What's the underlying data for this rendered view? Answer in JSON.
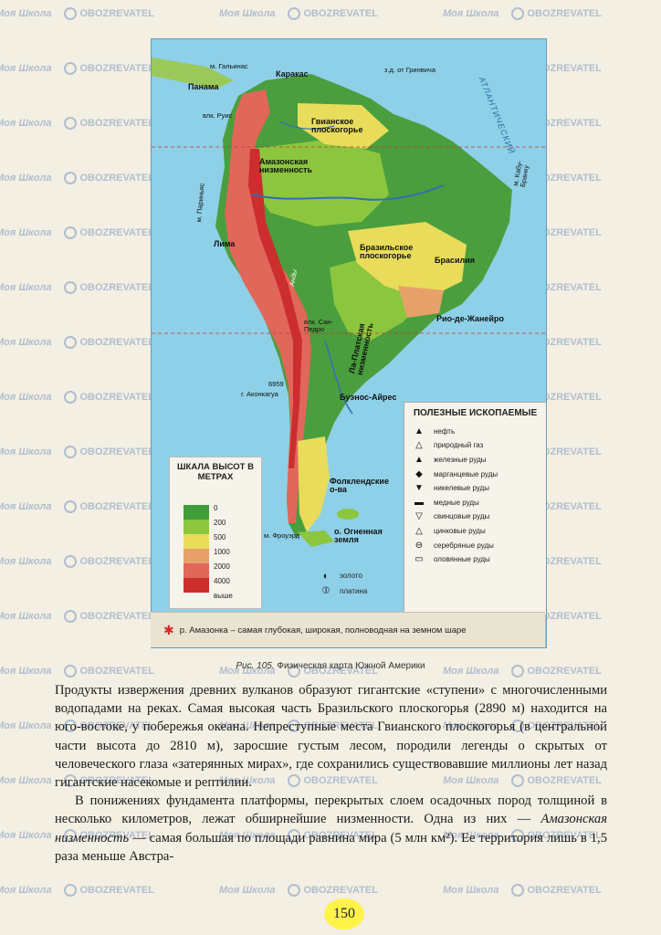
{
  "watermark": {
    "site": "Моя Школа",
    "brand": "OBOZREVATEL"
  },
  "map": {
    "labels": {
      "galinas": "м. Гальинас",
      "caracas": "Каракас",
      "panama": "Панама",
      "ruiz": "влк. Руис",
      "guiana_plateau": "Гвианское плоскогорье",
      "amazon_lowland": "Амазонская низменность",
      "parinas": "м. Париньяс",
      "lima": "Лима",
      "brazil_plateau": "Бразильское плоскогорье",
      "brasilia": "Брасилия",
      "rio": "Рио-де-Жанейро",
      "laplata": "Ла-Платская низменность",
      "san_pedro": "влк. Сан-Педро",
      "aconcagua_h": "6959",
      "aconcagua": "г. Аконкагуа",
      "buenos_aires": "Буэнос-Айрес",
      "falkland": "Фолклендские о-ва",
      "froward": "м. Фроуэрд",
      "tierra": "о. Огненная земля",
      "kabu_branku": "м. Кабу-Бранку",
      "andes": "Анды",
      "atlantic": "АТЛАНТИЧЕСКИЙ",
      "greenwich": "з.д. от Гринвича"
    },
    "minerals_legend": {
      "title": "ПОЛЕЗНЫЕ ИСКОПАЕМЫЕ",
      "items": [
        {
          "sym": "▲",
          "label": "нефть",
          "icon": "oil-icon"
        },
        {
          "sym": "△",
          "label": "природный газ",
          "icon": "gas-icon"
        },
        {
          "sym": "▲",
          "label": "железные руды",
          "icon": "iron-icon"
        },
        {
          "sym": "◆",
          "label": "марганцевые руды",
          "icon": "manganese-icon"
        },
        {
          "sym": "▼",
          "label": "никелевые руды",
          "icon": "nickel-icon"
        },
        {
          "sym": "▬",
          "label": "медные руды",
          "icon": "copper-icon"
        },
        {
          "sym": "▽",
          "label": "свинцовые руды",
          "icon": "lead-icon"
        },
        {
          "sym": "△",
          "label": "цинковые руды",
          "icon": "zinc-icon"
        },
        {
          "sym": "⊖",
          "label": "серебряные руды",
          "icon": "silver-icon"
        },
        {
          "sym": "▭",
          "label": "оловянные руды",
          "icon": "tin-icon"
        }
      ]
    },
    "scale_legend": {
      "title": "ШКАЛА ВЫСОТ В МЕТРАХ",
      "levels": [
        "0",
        "200",
        "500",
        "1000",
        "2000",
        "4000",
        "выше"
      ],
      "colors": [
        "#3f9e3a",
        "#8cc63e",
        "#e8dc5a",
        "#e8a06a",
        "#e0675a",
        "#cc2d2d"
      ]
    },
    "precious": [
      {
        "sym": "◐",
        "label": "золото",
        "icon": "gold-icon"
      },
      {
        "sym": "⦶",
        "label": "платина",
        "icon": "platinum-icon"
      }
    ],
    "bottom_note": "р. Амазонка – самая глубокая, широкая, полноводная на земном шаре"
  },
  "caption": {
    "fig": "Рис. 105.",
    "text": " Физическая карта Южной Америки"
  },
  "text": {
    "p1": "Продукты извержения древних вулканов образуют гигантские «ступени» с многочисленными водопадами на реках. Самая высокая часть Бразильского плоскогорья (2890 м) находится на юго-востоке, у побережья океана. Непреступные места Гвианского плоскогорья (в центральной части высота до 2810 м), заросшие густым лесом, породили легенды о скрытых от человеческого глаза «затерянных мирах», где сохранились существовавшие миллионы лет назад гигантские насекомые и рептилии.",
    "p2a": "В понижениях фундамента платформы, перекрытых слоем осадочных пород толщиной в несколько километров, лежат обширнейшие низменности. Одна из них — ",
    "p2em": "Амазонская низменность",
    "p2b": " — самая большая по площади равнина мира (5 млн км²). Ее территория лишь в 1,5 раза меньше Австра-"
  },
  "page_number": "150"
}
